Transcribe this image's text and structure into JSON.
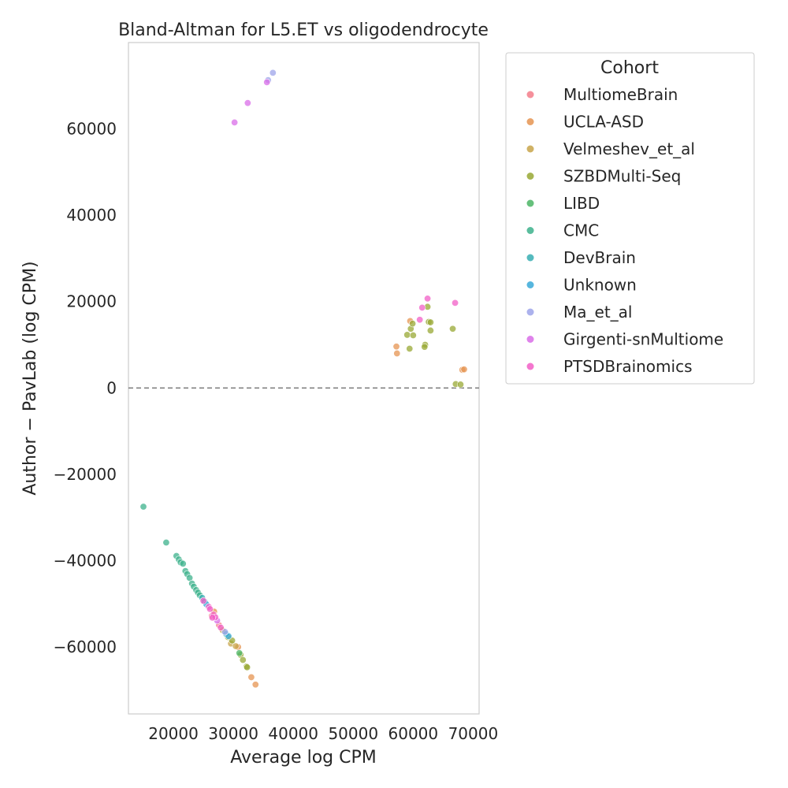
{
  "chart_data": {
    "type": "scatter",
    "title": "Bland-Altman for L5.ET vs oligodendrocyte",
    "xlabel": "Average log CPM",
    "ylabel": "Author − PavLab (log CPM)",
    "xlim": [
      12500,
      71000
    ],
    "ylim": [
      -75500,
      80000
    ],
    "xticks": [
      20000,
      30000,
      40000,
      50000,
      60000,
      70000
    ],
    "yticks": [
      -60000,
      -40000,
      -20000,
      0,
      20000,
      40000,
      60000
    ],
    "xtick_labels": [
      "20000",
      "30000",
      "40000",
      "50000",
      "60000",
      "70000"
    ],
    "ytick_labels": [
      "−60000",
      "−40000",
      "−20000",
      "0",
      "20000",
      "40000",
      "60000"
    ],
    "grid": false,
    "reference_line_y": 0,
    "legend": {
      "title": "Cohort",
      "placement": "outside-right"
    },
    "series": [
      {
        "name": "MultiomeBrain",
        "color": "#f37c8a",
        "points": [
          [
            26400,
            -52800
          ],
          [
            27600,
            -54900
          ]
        ]
      },
      {
        "name": "UCLA-ASD",
        "color": "#e59451",
        "points": [
          [
            33700,
            -68700
          ],
          [
            33000,
            -67000
          ],
          [
            30800,
            -60000
          ],
          [
            26800,
            -51800
          ],
          [
            57200,
            9600
          ],
          [
            57300,
            8000
          ],
          [
            59500,
            15500
          ],
          [
            68200,
            4200
          ],
          [
            68500,
            4300
          ]
        ]
      },
      {
        "name": "Velmeshev_et_al",
        "color": "#c8a44a",
        "points": [
          [
            28200,
            -56100
          ],
          [
            29600,
            -59200
          ],
          [
            30400,
            -59800
          ]
        ]
      },
      {
        "name": "SZBDMulti-Seq",
        "color": "#98a834",
        "points": [
          [
            29100,
            -57700
          ],
          [
            29800,
            -58500
          ],
          [
            31200,
            -61800
          ],
          [
            31600,
            -63000
          ],
          [
            32200,
            -64500
          ],
          [
            32300,
            -64700
          ],
          [
            59000,
            12300
          ],
          [
            59600,
            13700
          ],
          [
            59900,
            14900
          ],
          [
            60000,
            12200
          ],
          [
            59400,
            9100
          ],
          [
            62000,
            10000
          ],
          [
            61900,
            9500
          ],
          [
            62400,
            18800
          ],
          [
            62600,
            15300
          ],
          [
            62900,
            15200
          ],
          [
            62900,
            13300
          ],
          [
            66600,
            13700
          ],
          [
            67100,
            900
          ],
          [
            67900,
            800
          ]
        ]
      },
      {
        "name": "LIBD",
        "color": "#4bb565",
        "points": [
          [
            31000,
            -61400
          ]
        ]
      },
      {
        "name": "CMC",
        "color": "#3db28c",
        "points": [
          [
            15000,
            -27500
          ],
          [
            18800,
            -35800
          ],
          [
            20500,
            -38900
          ],
          [
            20900,
            -39700
          ],
          [
            21200,
            -40400
          ],
          [
            21600,
            -40700
          ],
          [
            22000,
            -42400
          ],
          [
            22300,
            -43100
          ],
          [
            22700,
            -44000
          ],
          [
            23100,
            -45300
          ],
          [
            23400,
            -46000
          ],
          [
            23800,
            -46800
          ],
          [
            24100,
            -47400
          ],
          [
            24400,
            -48000
          ]
        ]
      },
      {
        "name": "DevBrain",
        "color": "#37aeb3",
        "points": [
          [
            24800,
            -48600
          ],
          [
            25200,
            -49500
          ],
          [
            28800,
            -57000
          ]
        ]
      },
      {
        "name": "Unknown",
        "color": "#3aa9d8",
        "points": [
          [
            25500,
            -50100
          ],
          [
            29200,
            -57500
          ]
        ]
      },
      {
        "name": "Ma_et_al",
        "color": "#9da4ea",
        "points": [
          [
            36600,
            73000
          ],
          [
            35800,
            71300
          ],
          [
            28600,
            -56500
          ]
        ]
      },
      {
        "name": "Girgenti-snMultiome",
        "color": "#d96de8",
        "points": [
          [
            30200,
            61500
          ],
          [
            32400,
            66000
          ],
          [
            35600,
            70800
          ],
          [
            27300,
            -53900
          ]
        ]
      },
      {
        "name": "PTSDBrainomics",
        "color": "#f25fc7",
        "points": [
          [
            61100,
            15800
          ],
          [
            61500,
            18600
          ],
          [
            62400,
            20700
          ],
          [
            67000,
            19700
          ],
          [
            25900,
            -50700
          ],
          [
            26100,
            -51200
          ],
          [
            26700,
            -52500
          ],
          [
            27000,
            -53100
          ],
          [
            27900,
            -55500
          ],
          [
            26500,
            -53200
          ],
          [
            25000,
            -49300
          ]
        ]
      }
    ]
  }
}
